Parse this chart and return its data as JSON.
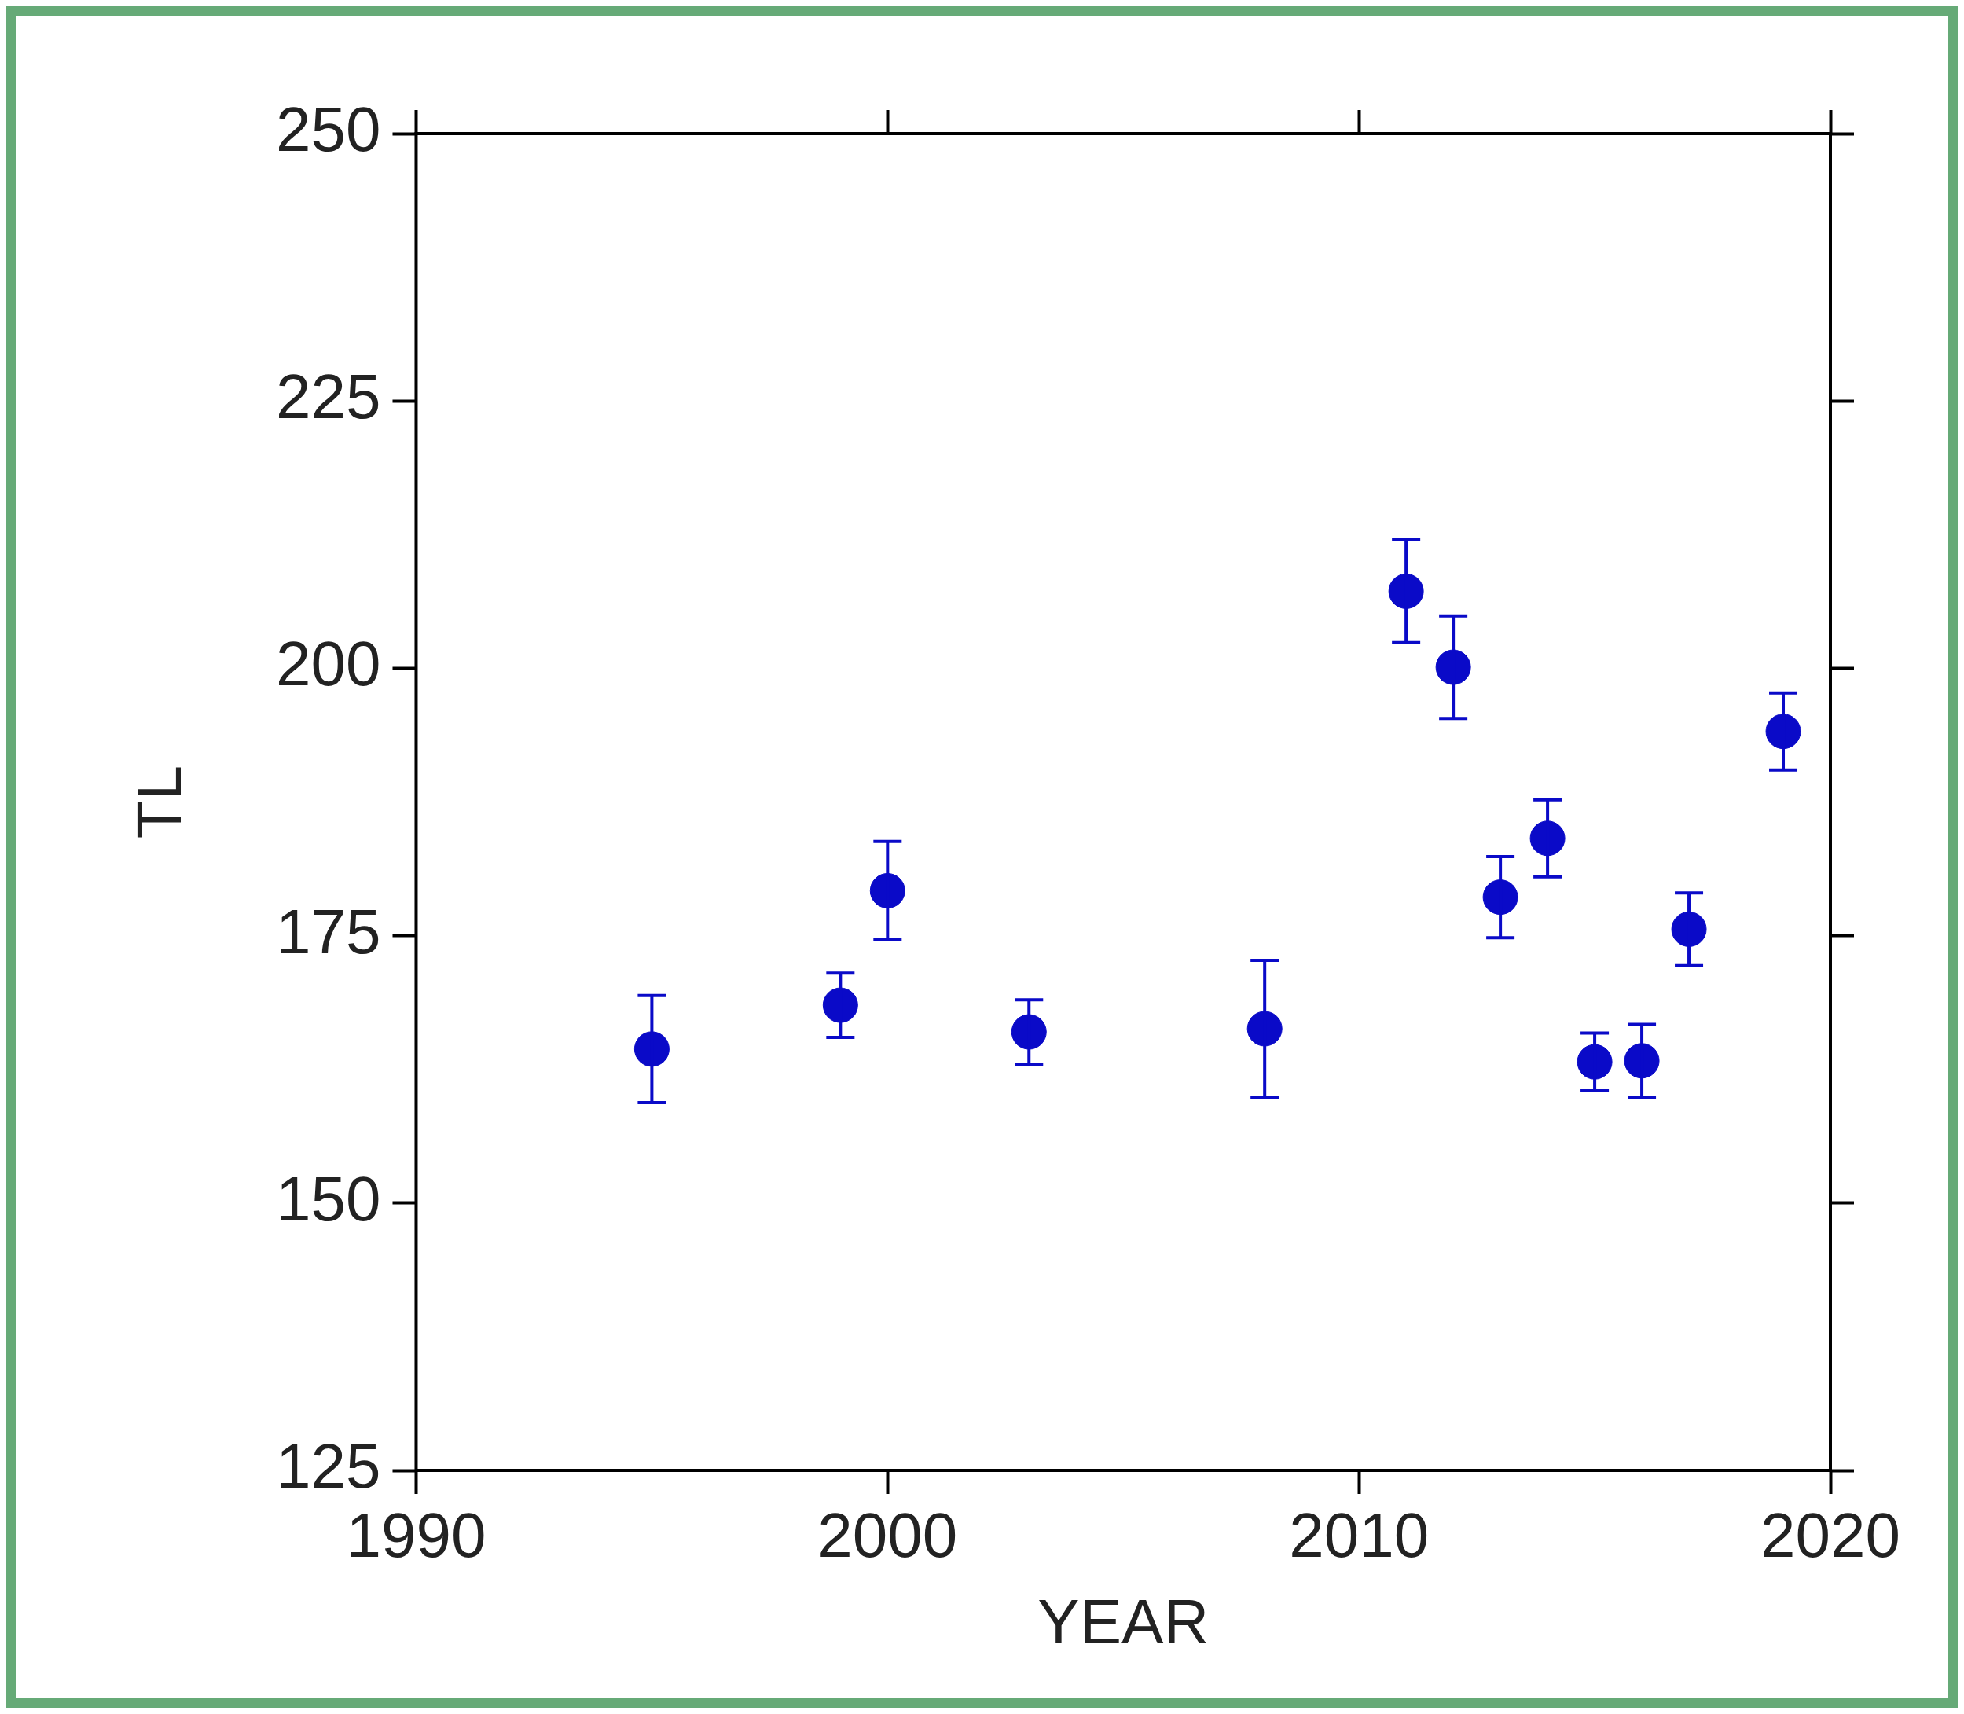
{
  "chart_data": {
    "type": "scatter",
    "xlabel": "YEAR",
    "ylabel": "TL",
    "x": [
      1995,
      1999,
      2000,
      2003,
      2008,
      2011,
      2012,
      2013,
      2014,
      2015,
      2016,
      2017,
      2019
    ],
    "values": [
      164.4,
      168.5,
      179.2,
      166,
      166.3,
      207.2,
      200.1,
      178.6,
      184.1,
      163.2,
      163.3,
      175.6,
      194.1
    ],
    "errors": [
      5,
      3,
      4.6,
      3,
      6.4,
      4.8,
      4.8,
      3.8,
      3.6,
      2.7,
      3.4,
      3.4,
      3.6
    ],
    "color": "#0a0ac8",
    "marker": "circle",
    "xlim": [
      1990,
      2020
    ],
    "xticks": [
      1990,
      2000,
      2010,
      2020
    ],
    "ylim": [
      125,
      250
    ],
    "yticks": [
      125,
      150,
      175,
      200,
      225,
      250
    ],
    "grid": false,
    "legend": false
  }
}
